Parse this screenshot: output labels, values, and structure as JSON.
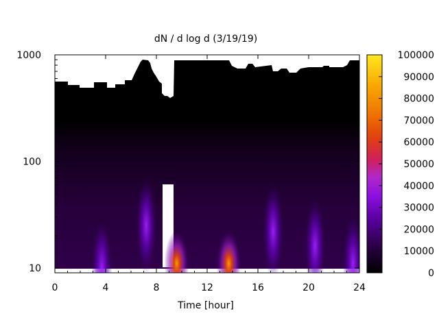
{
  "chart_data": {
    "type": "heatmap",
    "title": "dN / d log d (3/19/19)",
    "xlabel": "Time [hour]",
    "ylabel": "",
    "x_ticks": [
      "0",
      "4",
      "8",
      "12",
      "16",
      "20",
      "24"
    ],
    "y_ticks": [
      "10",
      "100",
      "1000"
    ],
    "xlim": [
      0,
      24
    ],
    "ylim": [
      9,
      1000
    ],
    "y_scale": "log",
    "colorbar": {
      "ticks": [
        "0",
        "10000",
        "20000",
        "30000",
        "40000",
        "50000",
        "60000",
        "70000",
        "80000",
        "90000",
        "100000"
      ],
      "range": [
        0,
        100000
      ],
      "palette": [
        "#000000",
        "#2a0044",
        "#5a00a0",
        "#8a10e0",
        "#b028c8",
        "#d0205a",
        "#e04010",
        "#ee7000",
        "#f8a800",
        "#ffe820"
      ]
    },
    "hotspots": [
      {
        "x": 3.7,
        "y": 10,
        "value": 25000
      },
      {
        "x": 7.2,
        "y": 25,
        "value": 22000
      },
      {
        "x": 9.6,
        "y": 11,
        "value": 62000
      },
      {
        "x": 13.7,
        "y": 11,
        "value": 72000
      },
      {
        "x": 17.2,
        "y": 22,
        "value": 24000
      },
      {
        "x": 20.5,
        "y": 16,
        "value": 18000
      },
      {
        "x": 23.5,
        "y": 11,
        "value": 16000
      }
    ],
    "missing_data": [
      {
        "x_from": 8.5,
        "x_to": 9.3,
        "y_from": 9,
        "y_to": 60
      }
    ]
  }
}
